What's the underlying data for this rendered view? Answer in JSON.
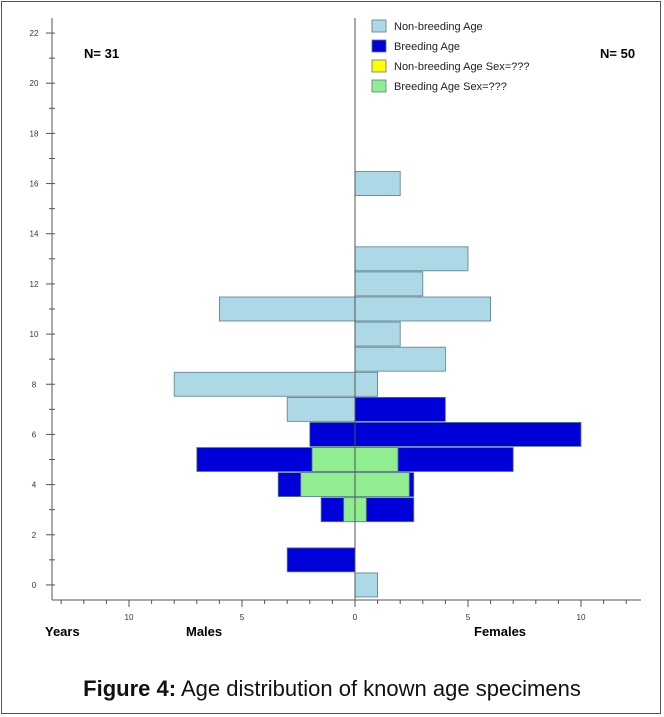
{
  "caption": {
    "label": "Figure 4:",
    "text": "Age distribution of known age specimens"
  },
  "chart_data": {
    "type": "bar",
    "orientation": "horizontal-population-pyramid",
    "n_males": "N= 31",
    "n_females": "N= 50",
    "ylabel": "Years",
    "xlabel_left": "Males",
    "xlabel_right": "Females",
    "ylim": [
      -0.6,
      22.6
    ],
    "xlim": [
      -13.5,
      13
    ],
    "y_ticks": [
      0,
      2,
      4,
      6,
      8,
      10,
      12,
      14,
      16,
      18,
      20,
      22
    ],
    "x_ticks": [
      {
        "value": -10,
        "label": "10"
      },
      {
        "value": -5,
        "label": "5"
      },
      {
        "value": 0,
        "label": "0"
      },
      {
        "value": 5,
        "label": "5"
      },
      {
        "value": 10,
        "label": "10"
      }
    ],
    "grid": false,
    "legend_position": "top-center",
    "series": [
      {
        "name": "Non-breeding Age",
        "color": "#add8e6",
        "bars": [
          {
            "age": 0,
            "males": 0,
            "females": 1
          },
          {
            "age": 7,
            "males": 3,
            "females": 0
          },
          {
            "age": 8,
            "males": 8,
            "females": 1
          },
          {
            "age": 9,
            "males": 0,
            "females": 4
          },
          {
            "age": 10,
            "males": 0,
            "females": 2
          },
          {
            "age": 11,
            "males": 6,
            "females": 6
          },
          {
            "age": 12,
            "males": 0,
            "females": 3
          },
          {
            "age": 13,
            "males": 0,
            "females": 5
          },
          {
            "age": 16,
            "males": 0,
            "females": 2
          }
        ]
      },
      {
        "name": "Breeding Age",
        "color": "#0000d8",
        "bars": [
          {
            "age": 1,
            "males": 3,
            "females": 0
          },
          {
            "age": 3,
            "males": 1.5,
            "females": 2.6
          },
          {
            "age": 4,
            "males": 3.4,
            "females": 2.6
          },
          {
            "age": 5,
            "males": 7,
            "females": 7
          },
          {
            "age": 6,
            "males": 2,
            "females": 10
          },
          {
            "age": 7,
            "males": 0,
            "females": 4
          }
        ]
      },
      {
        "name": "Non-breeding Age Sex=???",
        "color": "#ffff00",
        "bars": []
      },
      {
        "name": "Breeding Age Sex=???",
        "color": "#90ee90",
        "bars": [
          {
            "age": 3,
            "males": 0.5,
            "females": 0.5
          },
          {
            "age": 4,
            "males": 2.4,
            "females": 2.4
          },
          {
            "age": 5,
            "males": 1.9,
            "females": 1.9
          }
        ]
      }
    ]
  }
}
